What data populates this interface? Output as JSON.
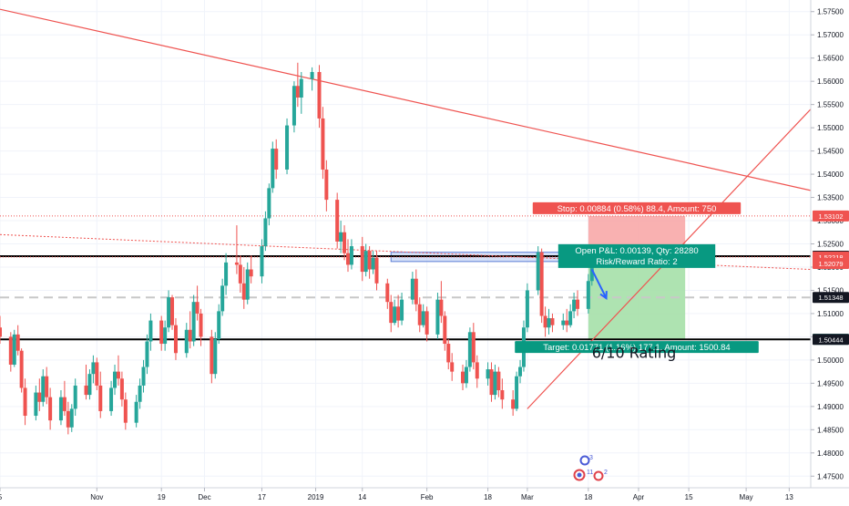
{
  "chart_data": {
    "type": "candlestick",
    "x_axis": {
      "ticks": [
        {
          "label": "5",
          "date": "2018-10-05"
        },
        {
          "label": "Nov",
          "date": "2018-11-01"
        },
        {
          "label": "19",
          "date": "2018-11-19"
        },
        {
          "label": "Dec",
          "date": "2018-12-01"
        },
        {
          "label": "17",
          "date": "2018-12-17"
        },
        {
          "label": "2019",
          "date": "2019-01-01"
        },
        {
          "label": "14",
          "date": "2019-01-14"
        },
        {
          "label": "Feb",
          "date": "2019-02-01"
        },
        {
          "label": "18",
          "date": "2019-02-18"
        },
        {
          "label": "Mar",
          "date": "2019-03-01"
        },
        {
          "label": "18",
          "date": "2019-03-18"
        },
        {
          "label": "Apr",
          "date": "2019-04-01"
        },
        {
          "label": "15",
          "date": "2019-04-15"
        },
        {
          "label": "May",
          "date": "2019-05-01"
        },
        {
          "label": "13",
          "date": "2019-05-13"
        }
      ],
      "range": [
        "2018-10-05",
        "2019-05-19"
      ]
    },
    "y_axis": {
      "ticks": [
        "1.57500",
        "1.57000",
        "1.56500",
        "1.56000",
        "1.55500",
        "1.55000",
        "1.54500",
        "1.54000",
        "1.53500",
        "1.53000",
        "1.52500",
        "1.52000",
        "1.51500",
        "1.51000",
        "1.50500",
        "1.50000",
        "1.49500",
        "1.49000",
        "1.48500",
        "1.48000",
        "1.47500"
      ],
      "range": [
        1.4725,
        1.5775
      ]
    },
    "price_badges": [
      {
        "label": "1.53102",
        "value": 1.53102,
        "color": "#ef5350"
      },
      {
        "label": "1.52236",
        "value": 1.52236,
        "color": "#131722"
      },
      {
        "label": "1.52218",
        "value": 1.52218,
        "color": "#ef5350"
      },
      {
        "label": "1.52079",
        "value": 1.52079,
        "color": "#ef5350"
      },
      {
        "label": "1.51348",
        "value": 1.51348,
        "color": "#131722"
      },
      {
        "label": "1.50447",
        "value": 1.50447,
        "color": "#26a69a"
      },
      {
        "label": "1.50444",
        "value": 1.50444,
        "color": "#131722"
      }
    ],
    "horizontal_lines": [
      {
        "value": 1.52236,
        "style": "solid",
        "color": "#000000"
      },
      {
        "value": 1.50444,
        "style": "solid",
        "color": "#000000"
      },
      {
        "value": 1.51348,
        "style": "dashed",
        "color": "#c8c8c8"
      },
      {
        "value": 1.52218,
        "style": "dotted",
        "color": "#ef5350"
      },
      {
        "value": 1.53102,
        "style": "dotted",
        "color": "#ef5350"
      }
    ],
    "trendlines": [
      {
        "from": [
          "2018-10-05",
          1.5755
        ],
        "to": [
          "2019-05-19",
          1.5365
        ],
        "color": "#ef5350"
      },
      {
        "from": [
          "2019-03-01",
          1.4895
        ],
        "to": [
          "2019-05-19",
          1.554
        ],
        "color": "#ef5350"
      },
      {
        "from": [
          "2018-10-05",
          1.527
        ],
        "to": [
          "2019-05-19",
          1.5195
        ],
        "color": "#ef5350",
        "style": "dotted"
      }
    ],
    "highlight_zone": {
      "from": "2019-01-22",
      "to": "2019-03-18",
      "low": 1.5212,
      "high": 1.5232
    },
    "trade": {
      "from": "2019-03-18",
      "to": "2019-04-14",
      "entry": 1.52218,
      "stop": 1.53102,
      "target": 1.50447,
      "stop_label": "Stop: 0.00884 (0.58%) 88.4, Amount: 750",
      "open_label": "Open P&L: 0.00139, Qty: 28280",
      "rr_label": "Risk/Reward Ratio: 2",
      "target_label": "Target: 0.01771 (1.16%) 177.1, Amount: 1500.84",
      "colors": {
        "stop_fill": "#f8a3a3",
        "target_fill": "#a5e0a8",
        "stop_badge": "#ef5350",
        "target_badge": "#089981"
      }
    },
    "arrow": {
      "from": [
        "2019-03-19",
        1.5195
      ],
      "to": [
        "2019-03-23",
        1.5133
      ],
      "color": "#2962ff"
    },
    "annotation": "6/10 Rating",
    "candle_colors": {
      "up": "#26a69a",
      "down": "#ef5350"
    },
    "candles": [
      [
        "2018-10-05",
        1.507,
        1.5095,
        1.5035,
        1.505
      ],
      [
        "2018-10-08",
        1.505,
        1.506,
        1.4975,
        1.499
      ],
      [
        "2018-10-09",
        1.499,
        1.5065,
        1.4985,
        1.5055
      ],
      [
        "2018-10-10",
        1.5055,
        1.5075,
        1.501,
        1.502
      ],
      [
        "2018-10-11",
        1.502,
        1.5025,
        1.493,
        1.494
      ],
      [
        "2018-10-12",
        1.494,
        1.496,
        1.486,
        1.488
      ],
      [
        "2018-10-15",
        1.488,
        1.4945,
        1.487,
        1.493
      ],
      [
        "2018-10-16",
        1.493,
        1.496,
        1.489,
        1.491
      ],
      [
        "2018-10-17",
        1.491,
        1.498,
        1.49,
        1.4965
      ],
      [
        "2018-10-18",
        1.4965,
        1.4985,
        1.4905,
        1.492
      ],
      [
        "2018-10-19",
        1.492,
        1.494,
        1.485,
        1.487
      ],
      [
        "2018-10-22",
        1.487,
        1.4935,
        1.486,
        1.492
      ],
      [
        "2018-10-23",
        1.492,
        1.4955,
        1.488,
        1.489
      ],
      [
        "2018-10-24",
        1.489,
        1.491,
        1.484,
        1.4855
      ],
      [
        "2018-10-25",
        1.4855,
        1.4905,
        1.4845,
        1.4895
      ],
      [
        "2018-10-26",
        1.4895,
        1.496,
        1.488,
        1.4945
      ],
      [
        "2018-10-29",
        1.4945,
        1.499,
        1.4915,
        1.4925
      ],
      [
        "2018-10-30",
        1.4925,
        1.498,
        1.4915,
        1.497
      ],
      [
        "2018-10-31",
        1.497,
        1.501,
        1.495,
        1.4995
      ],
      [
        "2018-11-01",
        1.4995,
        1.5005,
        1.4935,
        1.4945
      ],
      [
        "2018-11-02",
        1.4945,
        1.4975,
        1.4875,
        1.489
      ],
      [
        "2018-11-05",
        1.489,
        1.4955,
        1.488,
        1.494
      ],
      [
        "2018-11-06",
        1.494,
        1.499,
        1.4925,
        1.4975
      ],
      [
        "2018-11-07",
        1.4975,
        1.501,
        1.4945,
        1.496
      ],
      [
        "2018-11-08",
        1.496,
        1.4975,
        1.49,
        1.4915
      ],
      [
        "2018-11-09",
        1.4915,
        1.493,
        1.485,
        1.4865
      ],
      [
        "2018-11-12",
        1.4865,
        1.4925,
        1.4855,
        1.491
      ],
      [
        "2018-11-13",
        1.491,
        1.496,
        1.4895,
        1.4945
      ],
      [
        "2018-11-14",
        1.4945,
        1.5,
        1.493,
        1.4985
      ],
      [
        "2018-11-15",
        1.4985,
        1.5055,
        1.497,
        1.504
      ],
      [
        "2018-11-16",
        1.504,
        1.51,
        1.502,
        1.5085
      ],
      [
        "2018-11-19",
        1.5085,
        1.5095,
        1.502,
        1.5035
      ],
      [
        "2018-11-20",
        1.5035,
        1.5085,
        1.502,
        1.507
      ],
      [
        "2018-11-21",
        1.507,
        1.515,
        1.506,
        1.5135
      ],
      [
        "2018-11-22",
        1.5135,
        1.514,
        1.5065,
        1.5075
      ],
      [
        "2018-11-23",
        1.5075,
        1.509,
        1.5,
        1.5015
      ],
      [
        "2018-11-26",
        1.5015,
        1.508,
        1.5005,
        1.5065
      ],
      [
        "2018-11-27",
        1.5065,
        1.5105,
        1.5025,
        1.504
      ],
      [
        "2018-11-28",
        1.504,
        1.514,
        1.503,
        1.5125
      ],
      [
        "2018-11-29",
        1.5125,
        1.516,
        1.5085,
        1.51
      ],
      [
        "2018-11-30",
        1.51,
        1.511,
        1.503,
        1.505
      ],
      [
        "2018-12-03",
        1.505,
        1.5065,
        1.495,
        1.497
      ],
      [
        "2018-12-04",
        1.497,
        1.506,
        1.496,
        1.5045
      ],
      [
        "2018-12-05",
        1.5045,
        1.512,
        1.5035,
        1.5105
      ],
      [
        "2018-12-06",
        1.5105,
        1.5175,
        1.5095,
        1.516
      ],
      [
        "2018-12-07",
        1.516,
        1.523,
        1.514,
        1.521
      ],
      [
        "2018-12-10",
        1.521,
        1.529,
        1.5185,
        1.5205
      ],
      [
        "2018-12-11",
        1.5205,
        1.5225,
        1.5145,
        1.5165
      ],
      [
        "2018-12-12",
        1.5165,
        1.52,
        1.511,
        1.513
      ],
      [
        "2018-12-13",
        1.513,
        1.521,
        1.512,
        1.5195
      ],
      [
        "2018-12-14",
        1.5195,
        1.5225,
        1.5165,
        1.518
      ],
      [
        "2018-12-17",
        1.518,
        1.526,
        1.5165,
        1.5245
      ],
      [
        "2018-12-18",
        1.5245,
        1.532,
        1.5235,
        1.5305
      ],
      [
        "2018-12-19",
        1.5305,
        1.538,
        1.529,
        1.537
      ],
      [
        "2018-12-20",
        1.537,
        1.547,
        1.536,
        1.5455
      ],
      [
        "2018-12-21",
        1.5455,
        1.5475,
        1.539,
        1.541
      ],
      [
        "2018-12-24",
        1.541,
        1.552,
        1.54,
        1.5505
      ],
      [
        "2018-12-26",
        1.5505,
        1.56,
        1.549,
        1.559
      ],
      [
        "2018-12-27",
        1.559,
        1.564,
        1.5545,
        1.5565
      ],
      [
        "2018-12-28",
        1.5565,
        1.562,
        1.553,
        1.5605
      ],
      [
        "2018-12-31",
        1.5605,
        1.563,
        1.558,
        1.562
      ],
      [
        "2019-01-02",
        1.562,
        1.5635,
        1.55,
        1.552
      ],
      [
        "2019-01-03",
        1.552,
        1.5545,
        1.539,
        1.541
      ],
      [
        "2019-01-04",
        1.541,
        1.543,
        1.532,
        1.5345
      ],
      [
        "2019-01-07",
        1.5345,
        1.536,
        1.524,
        1.5255
      ],
      [
        "2019-01-08",
        1.5255,
        1.53,
        1.523,
        1.5275
      ],
      [
        "2019-01-09",
        1.5275,
        1.529,
        1.5215,
        1.523
      ],
      [
        "2019-01-10",
        1.523,
        1.526,
        1.519,
        1.5205
      ],
      [
        "2019-01-11",
        1.5205,
        1.526,
        1.5195,
        1.5245
      ],
      [
        "2019-01-14",
        1.5245,
        1.5265,
        1.517,
        1.519
      ],
      [
        "2019-01-15",
        1.519,
        1.525,
        1.518,
        1.5235
      ],
      [
        "2019-01-16",
        1.5235,
        1.5245,
        1.5175,
        1.5195
      ],
      [
        "2019-01-17",
        1.5195,
        1.5235,
        1.5185,
        1.522
      ],
      [
        "2019-01-18",
        1.522,
        1.5235,
        1.515,
        1.5165
      ],
      [
        "2019-01-21",
        1.5165,
        1.5175,
        1.511,
        1.5125
      ],
      [
        "2019-01-22",
        1.5125,
        1.514,
        1.506,
        1.508
      ],
      [
        "2019-01-23",
        1.508,
        1.513,
        1.5075,
        1.5115
      ],
      [
        "2019-01-24",
        1.5115,
        1.514,
        1.507,
        1.5085
      ],
      [
        "2019-01-25",
        1.5085,
        1.5145,
        1.5075,
        1.513
      ],
      [
        "2019-01-28",
        1.513,
        1.519,
        1.512,
        1.5175
      ],
      [
        "2019-01-29",
        1.5175,
        1.5195,
        1.5105,
        1.512
      ],
      [
        "2019-01-30",
        1.512,
        1.5135,
        1.506,
        1.5075
      ],
      [
        "2019-01-31",
        1.5075,
        1.512,
        1.507,
        1.5105
      ],
      [
        "2019-02-01",
        1.5105,
        1.5115,
        1.504,
        1.5055
      ],
      [
        "2019-02-04",
        1.5055,
        1.5145,
        1.5045,
        1.513
      ],
      [
        "2019-02-05",
        1.513,
        1.517,
        1.508,
        1.5095
      ],
      [
        "2019-02-06",
        1.5095,
        1.5105,
        1.502,
        1.5035
      ],
      [
        "2019-02-07",
        1.5035,
        1.5045,
        1.498,
        1.4995
      ],
      [
        "2019-02-08",
        1.4995,
        1.5015,
        1.4955,
        1.4975
      ],
      [
        "2019-02-11",
        1.4975,
        1.499,
        1.4935,
        1.495
      ],
      [
        "2019-02-12",
        1.495,
        1.5,
        1.494,
        1.4985
      ],
      [
        "2019-02-13",
        1.4985,
        1.507,
        1.4975,
        1.506
      ],
      [
        "2019-02-14",
        1.506,
        1.508,
        1.498,
        1.4995
      ],
      [
        "2019-02-15",
        1.4995,
        1.501,
        1.494,
        1.496
      ],
      [
        "2019-02-18",
        1.496,
        1.4995,
        1.4945,
        1.498
      ],
      [
        "2019-02-19",
        1.498,
        1.4995,
        1.491,
        1.4925
      ],
      [
        "2019-02-20",
        1.4925,
        1.499,
        1.4915,
        1.4975
      ],
      [
        "2019-02-21",
        1.4975,
        1.4985,
        1.492,
        1.4935
      ],
      [
        "2019-02-22",
        1.4935,
        1.496,
        1.4895,
        1.4915
      ],
      [
        "2019-02-25",
        1.4915,
        1.4935,
        1.488,
        1.4895
      ],
      [
        "2019-02-26",
        1.4895,
        1.4975,
        1.489,
        1.4965
      ],
      [
        "2019-02-27",
        1.4965,
        1.5,
        1.495,
        1.4985
      ],
      [
        "2019-02-28",
        1.4985,
        1.5085,
        1.4975,
        1.507
      ],
      [
        "2019-03-01",
        1.507,
        1.5165,
        1.506,
        1.515
      ],
      [
        "2019-03-04",
        1.515,
        1.5245,
        1.514,
        1.5232
      ],
      [
        "2019-03-05",
        1.5232,
        1.524,
        1.508,
        1.5095
      ],
      [
        "2019-03-06",
        1.5095,
        1.5115,
        1.505,
        1.507
      ],
      [
        "2019-03-07",
        1.507,
        1.511,
        1.5055,
        1.509
      ],
      [
        "2019-03-08",
        1.509,
        1.51,
        1.506,
        1.5075
      ],
      [
        "2019-03-11",
        1.5075,
        1.51,
        1.5065,
        1.5085
      ],
      [
        "2019-03-12",
        1.5085,
        1.511,
        1.506,
        1.5075
      ],
      [
        "2019-03-13",
        1.5075,
        1.512,
        1.507,
        1.5105
      ],
      [
        "2019-03-14",
        1.5105,
        1.5145,
        1.509,
        1.513
      ],
      [
        "2019-03-15",
        1.513,
        1.515,
        1.5095,
        1.511
      ],
      [
        "2019-03-18",
        1.511,
        1.5185,
        1.51,
        1.517
      ],
      [
        "2019-03-19",
        1.517,
        1.524,
        1.516,
        1.5208
      ]
    ]
  },
  "logo_badges": [
    "3",
    "11",
    "2"
  ]
}
